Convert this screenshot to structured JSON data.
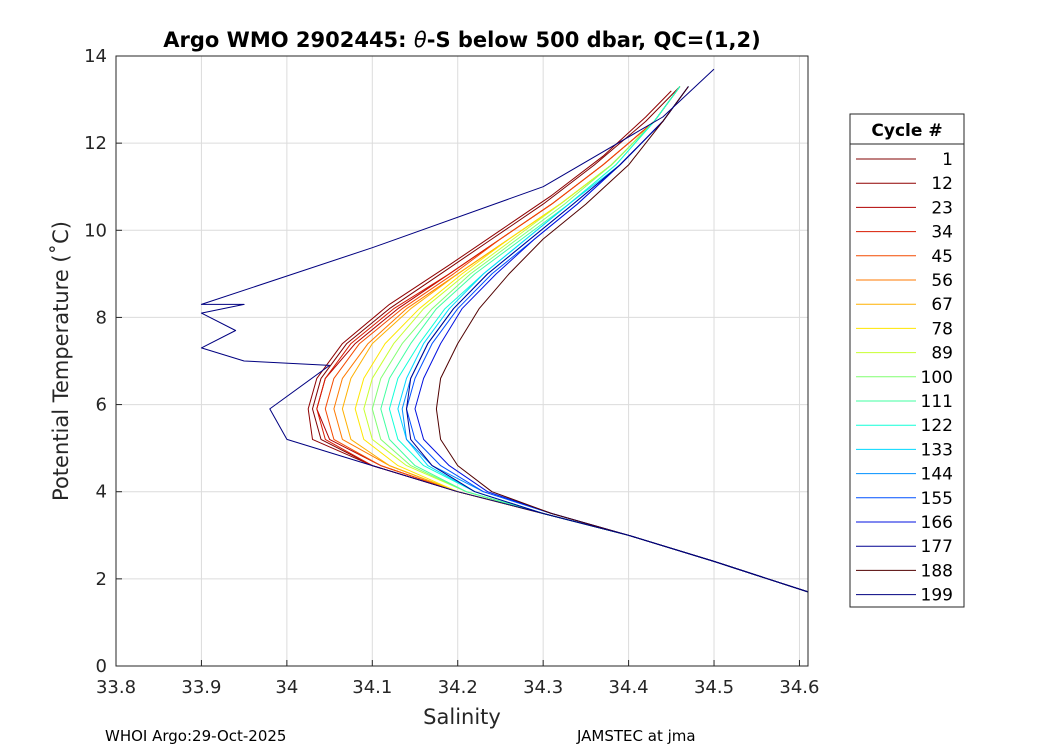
{
  "chart_data": {
    "type": "line",
    "title_prefix": "Argo WMO 2902445: ",
    "title_theta": "θ",
    "title_suffix": "-S below 500 dbar,  QC=(1,2)",
    "xlabel": "Salinity",
    "ylabel": "Potential Temperature (˚C)",
    "xlim": [
      33.8,
      34.61
    ],
    "ylim": [
      0,
      14
    ],
    "xticks": [
      33.8,
      33.9,
      34.0,
      34.1,
      34.2,
      34.3,
      34.4,
      34.5,
      34.6
    ],
    "xtick_labels": [
      "33.8",
      "33.9",
      "34",
      "34.1",
      "34.2",
      "34.3",
      "34.4",
      "34.5",
      "34.6"
    ],
    "yticks": [
      0,
      2,
      4,
      6,
      8,
      10,
      12,
      14
    ],
    "ytick_labels": [
      "0",
      "2",
      "4",
      "6",
      "8",
      "10",
      "12",
      "14"
    ],
    "grid": true,
    "legend": {
      "title": "Cycle #",
      "position": "outside-right",
      "entries": [
        {
          "label": "1",
          "color": "#800000"
        },
        {
          "label": "12",
          "color": "#8f0000"
        },
        {
          "label": "23",
          "color": "#b00000"
        },
        {
          "label": "34",
          "color": "#d81a00"
        },
        {
          "label": "45",
          "color": "#f44a00"
        },
        {
          "label": "56",
          "color": "#ff7a00"
        },
        {
          "label": "67",
          "color": "#ffb000"
        },
        {
          "label": "78",
          "color": "#ffe600"
        },
        {
          "label": "89",
          "color": "#c8ff30"
        },
        {
          "label": "100",
          "color": "#80ff70"
        },
        {
          "label": "111",
          "color": "#40ffa0"
        },
        {
          "label": "122",
          "color": "#10ffd8"
        },
        {
          "label": "133",
          "color": "#00d8ff"
        },
        {
          "label": "144",
          "color": "#0090ff"
        },
        {
          "label": "155",
          "color": "#0050ff"
        },
        {
          "label": "166",
          "color": "#0010e0"
        },
        {
          "label": "177",
          "color": "#000090"
        },
        {
          "label": "188",
          "color": "#500000"
        },
        {
          "label": "199",
          "color": "#000080"
        }
      ]
    },
    "series": [
      {
        "name": "1",
        "color": "#800000",
        "s": [
          34.61,
          34.5,
          34.4,
          34.3,
          34.2,
          34.1,
          34.04,
          34.03,
          34.04,
          34.07,
          34.12,
          34.18,
          34.24,
          34.3,
          34.36,
          34.42,
          34.46
        ],
        "t": [
          1.7,
          2.4,
          3.0,
          3.5,
          4.0,
          4.6,
          5.2,
          5.9,
          6.6,
          7.4,
          8.2,
          9.0,
          9.8,
          10.6,
          11.5,
          12.5,
          13.3
        ]
      },
      {
        "name": "12",
        "color": "#8f0000",
        "s": [
          34.61,
          34.5,
          34.4,
          34.3,
          34.2,
          34.1,
          34.03,
          34.025,
          34.035,
          34.065,
          34.12,
          34.19,
          34.25,
          34.31,
          34.37,
          34.42,
          34.45
        ],
        "t": [
          1.7,
          2.4,
          3.0,
          3.5,
          4.0,
          4.6,
          5.2,
          5.9,
          6.6,
          7.4,
          8.3,
          9.2,
          10.0,
          10.8,
          11.7,
          12.6,
          13.2
        ]
      },
      {
        "name": "23",
        "color": "#b00000",
        "s": [
          34.61,
          34.5,
          34.4,
          34.3,
          34.2,
          34.11,
          34.05,
          34.035,
          34.045,
          34.08,
          34.13,
          34.19,
          34.25,
          34.31,
          34.37,
          34.43,
          34.46
        ],
        "t": [
          1.7,
          2.4,
          3.0,
          3.5,
          4.0,
          4.6,
          5.2,
          5.9,
          6.6,
          7.4,
          8.2,
          9.0,
          9.8,
          10.6,
          11.5,
          12.5,
          13.3
        ]
      },
      {
        "name": "34",
        "color": "#d81a00",
        "s": [
          34.61,
          34.5,
          34.4,
          34.3,
          34.2,
          34.1,
          34.045,
          34.035,
          34.045,
          34.075,
          34.125,
          34.19,
          34.25,
          34.31,
          34.37,
          34.43,
          34.46
        ],
        "t": [
          1.7,
          2.4,
          3.0,
          3.5,
          4.0,
          4.6,
          5.2,
          5.9,
          6.6,
          7.4,
          8.2,
          9.0,
          9.8,
          10.6,
          11.5,
          12.5,
          13.3
        ]
      },
      {
        "name": "45",
        "color": "#f44a00",
        "s": [
          34.61,
          34.5,
          34.4,
          34.3,
          34.2,
          34.11,
          34.055,
          34.045,
          34.055,
          34.085,
          34.135,
          34.195,
          34.25,
          34.31,
          34.37,
          34.43,
          34.46
        ],
        "t": [
          1.7,
          2.4,
          3.0,
          3.5,
          4.0,
          4.6,
          5.2,
          5.9,
          6.6,
          7.4,
          8.2,
          9.0,
          9.8,
          10.6,
          11.5,
          12.5,
          13.3
        ]
      },
      {
        "name": "56",
        "color": "#ff7a00",
        "s": [
          34.61,
          34.5,
          34.4,
          34.3,
          34.2,
          34.12,
          34.065,
          34.055,
          34.065,
          34.095,
          34.14,
          34.2,
          34.26,
          34.32,
          34.38,
          34.43,
          34.46
        ],
        "t": [
          1.7,
          2.4,
          3.0,
          3.5,
          4.0,
          4.6,
          5.2,
          5.9,
          6.6,
          7.4,
          8.2,
          9.0,
          9.8,
          10.6,
          11.5,
          12.5,
          13.3
        ]
      },
      {
        "name": "67",
        "color": "#ffb000",
        "s": [
          34.61,
          34.5,
          34.4,
          34.3,
          34.2,
          34.12,
          34.075,
          34.065,
          34.075,
          34.1,
          34.145,
          34.2,
          34.26,
          34.32,
          34.38,
          34.43,
          34.46
        ],
        "t": [
          1.7,
          2.4,
          3.0,
          3.5,
          4.0,
          4.6,
          5.2,
          5.9,
          6.6,
          7.4,
          8.2,
          9.0,
          9.8,
          10.6,
          11.5,
          12.5,
          13.3
        ]
      },
      {
        "name": "78",
        "color": "#ffe600",
        "s": [
          34.61,
          34.5,
          34.4,
          34.3,
          34.2,
          34.13,
          34.09,
          34.08,
          34.09,
          34.115,
          34.155,
          34.205,
          34.26,
          34.32,
          34.38,
          34.43,
          34.46
        ],
        "t": [
          1.7,
          2.4,
          3.0,
          3.5,
          4.0,
          4.6,
          5.2,
          5.9,
          6.6,
          7.4,
          8.2,
          9.0,
          9.8,
          10.6,
          11.5,
          12.5,
          13.3
        ]
      },
      {
        "name": "89",
        "color": "#c8ff30",
        "s": [
          34.61,
          34.5,
          34.4,
          34.3,
          34.21,
          34.14,
          34.1,
          34.09,
          34.1,
          34.125,
          34.16,
          34.21,
          34.265,
          34.32,
          34.38,
          34.43,
          34.46
        ],
        "t": [
          1.7,
          2.4,
          3.0,
          3.5,
          4.0,
          4.6,
          5.2,
          5.9,
          6.6,
          7.4,
          8.2,
          9.0,
          9.8,
          10.6,
          11.5,
          12.5,
          13.3
        ]
      },
      {
        "name": "100",
        "color": "#80ff70",
        "s": [
          34.61,
          34.5,
          34.4,
          34.3,
          34.21,
          34.145,
          34.11,
          34.1,
          34.11,
          34.135,
          34.17,
          34.215,
          34.27,
          34.325,
          34.38,
          34.43,
          34.46
        ],
        "t": [
          1.7,
          2.4,
          3.0,
          3.5,
          4.0,
          4.6,
          5.2,
          5.9,
          6.6,
          7.4,
          8.2,
          9.0,
          9.8,
          10.6,
          11.5,
          12.5,
          13.3
        ]
      },
      {
        "name": "111",
        "color": "#40ffa0",
        "s": [
          34.61,
          34.5,
          34.4,
          34.3,
          34.21,
          34.15,
          34.12,
          34.11,
          34.12,
          34.145,
          34.175,
          34.22,
          34.275,
          34.33,
          34.385,
          34.43,
          34.46
        ],
        "t": [
          1.7,
          2.4,
          3.0,
          3.5,
          4.0,
          4.6,
          5.2,
          5.9,
          6.6,
          7.4,
          8.2,
          9.0,
          9.8,
          10.6,
          11.5,
          12.5,
          13.3
        ]
      },
      {
        "name": "122",
        "color": "#10ffd8",
        "s": [
          34.61,
          34.5,
          34.4,
          34.3,
          34.22,
          34.16,
          34.13,
          34.12,
          34.13,
          34.155,
          34.185,
          34.23,
          34.28,
          34.33,
          34.385,
          34.43,
          34.46
        ],
        "t": [
          1.7,
          2.4,
          3.0,
          3.5,
          4.0,
          4.6,
          5.2,
          5.9,
          6.6,
          7.4,
          8.2,
          9.0,
          9.8,
          10.6,
          11.5,
          12.5,
          13.3
        ]
      },
      {
        "name": "133",
        "color": "#00d8ff",
        "s": [
          34.61,
          34.5,
          34.4,
          34.3,
          34.22,
          34.165,
          34.14,
          34.13,
          34.14,
          34.16,
          34.19,
          34.23,
          34.28,
          34.33,
          34.39,
          34.44,
          34.47
        ],
        "t": [
          1.7,
          2.4,
          3.0,
          3.5,
          4.0,
          4.6,
          5.2,
          5.9,
          6.6,
          7.4,
          8.2,
          9.0,
          9.8,
          10.6,
          11.5,
          12.5,
          13.3
        ]
      },
      {
        "name": "144",
        "color": "#0090ff",
        "s": [
          34.61,
          34.5,
          34.4,
          34.31,
          34.23,
          34.17,
          34.14,
          34.135,
          34.145,
          34.165,
          34.195,
          34.235,
          34.285,
          34.335,
          34.39,
          34.44,
          34.47
        ],
        "t": [
          1.7,
          2.4,
          3.0,
          3.5,
          4.0,
          4.6,
          5.2,
          5.9,
          6.6,
          7.4,
          8.2,
          9.0,
          9.8,
          10.6,
          11.5,
          12.5,
          13.3
        ]
      },
      {
        "name": "155",
        "color": "#0050ff",
        "s": [
          34.61,
          34.5,
          34.4,
          34.31,
          34.23,
          34.18,
          34.15,
          34.14,
          34.15,
          34.17,
          34.2,
          34.24,
          34.29,
          34.34,
          34.39,
          34.44,
          34.47
        ],
        "t": [
          1.7,
          2.4,
          3.0,
          3.5,
          4.0,
          4.6,
          5.2,
          5.9,
          6.6,
          7.4,
          8.2,
          9.0,
          9.8,
          10.6,
          11.5,
          12.5,
          13.3
        ]
      },
      {
        "name": "166",
        "color": "#0010e0",
        "s": [
          34.61,
          34.5,
          34.4,
          34.31,
          34.235,
          34.19,
          34.16,
          34.15,
          34.16,
          34.18,
          34.205,
          34.245,
          34.29,
          34.34,
          34.39,
          34.44,
          34.47
        ],
        "t": [
          1.7,
          2.4,
          3.0,
          3.5,
          4.0,
          4.6,
          5.2,
          5.9,
          6.6,
          7.4,
          8.2,
          9.0,
          9.8,
          10.6,
          11.5,
          12.5,
          13.3
        ]
      },
      {
        "name": "177",
        "color": "#000090",
        "s": [
          34.61,
          34.5,
          34.4,
          34.3,
          34.22,
          34.17,
          34.145,
          34.14,
          34.145,
          34.165,
          34.195,
          34.235,
          34.285,
          34.335,
          34.39,
          34.44,
          34.47
        ],
        "t": [
          1.7,
          2.4,
          3.0,
          3.5,
          4.0,
          4.6,
          5.2,
          5.9,
          6.6,
          7.4,
          8.2,
          9.0,
          9.8,
          10.6,
          11.5,
          12.5,
          13.3
        ]
      },
      {
        "name": "188",
        "color": "#500000",
        "s": [
          34.61,
          34.5,
          34.4,
          34.31,
          34.24,
          34.2,
          34.18,
          34.175,
          34.18,
          34.2,
          34.225,
          34.26,
          34.3,
          34.35,
          34.4,
          34.44,
          34.47
        ],
        "t": [
          1.7,
          2.4,
          3.0,
          3.5,
          4.0,
          4.6,
          5.2,
          5.9,
          6.6,
          7.4,
          8.2,
          9.0,
          9.8,
          10.6,
          11.5,
          12.5,
          13.3
        ]
      },
      {
        "name": "199",
        "color": "#000080",
        "s": [
          34.61,
          34.5,
          34.4,
          34.3,
          34.2,
          34.1,
          34.0,
          33.98,
          34.05,
          33.95,
          33.9,
          33.94,
          33.9,
          33.95,
          33.9,
          34.1,
          34.3,
          34.44,
          34.5
        ],
        "t": [
          1.7,
          2.4,
          3.0,
          3.5,
          4.0,
          4.6,
          5.2,
          5.9,
          6.9,
          7.0,
          7.3,
          7.7,
          8.1,
          8.3,
          8.3,
          9.6,
          11.0,
          12.6,
          13.7
        ]
      }
    ]
  },
  "footer": {
    "left": "WHOI Argo:29-Oct-2025",
    "right": "JAMSTEC at jma"
  }
}
